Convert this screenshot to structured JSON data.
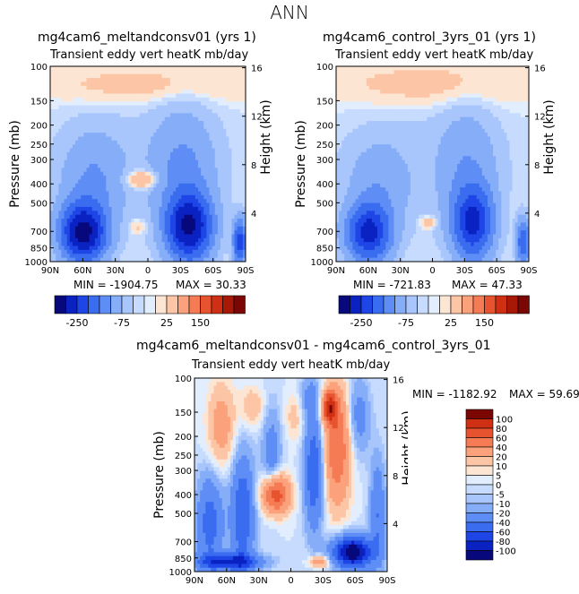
{
  "figure_title": "ANN",
  "palette": [
    "#08087d",
    "#0a22c2",
    "#1e46e6",
    "#3a6cf0",
    "#5e8ef5",
    "#86aef8",
    "#a8c6fb",
    "#c6dbfd",
    "#e2eefe",
    "#fde5d3",
    "#fcc6a6",
    "#fba27c",
    "#f57b55",
    "#e8532f",
    "#cf2f12",
    "#a71807",
    "#7a0704"
  ],
  "chart_data": [
    {
      "type": "contour",
      "title": "mg4cam6_meltandconsv01 (yrs 1)",
      "subtitle": "Transient eddy vert heatK mb/day",
      "ylabel": "Pressure (mb)",
      "ylabel_right": "Height (km)",
      "x_ticks": [
        "90N",
        "60N",
        "30N",
        "0",
        "30S",
        "60S",
        "90S"
      ],
      "y_ticks": [
        "100",
        "150",
        "200",
        "250",
        "300",
        "400",
        "500",
        "700",
        "850",
        "1000"
      ],
      "height_ticks": [
        "4",
        "8",
        "12",
        "16"
      ],
      "min_label": "MIN = -1904.75",
      "max_label": "MAX =   30.33",
      "colorbar_labels": [
        "-250",
        "-75",
        "25",
        "150"
      ]
    },
    {
      "type": "contour",
      "title": "mg4cam6_control_3yrs_01 (yrs 1)",
      "subtitle": "Transient eddy vert heatK mb/day",
      "ylabel": "Pressure (mb)",
      "ylabel_right": "Height (km)",
      "x_ticks": [
        "90N",
        "60N",
        "30N",
        "0",
        "30S",
        "60S",
        "90S"
      ],
      "y_ticks": [
        "100",
        "150",
        "200",
        "250",
        "300",
        "400",
        "500",
        "700",
        "850",
        "1000"
      ],
      "height_ticks": [
        "4",
        "8",
        "12",
        "16"
      ],
      "min_label": "MIN = -721.83",
      "max_label": "MAX =   47.33",
      "colorbar_labels": [
        "-250",
        "-75",
        "25",
        "150"
      ]
    },
    {
      "type": "contour",
      "title": "mg4cam6_meltandconsv01 - mg4cam6_control_3yrs_01",
      "subtitle": "Transient eddy vert heatK mb/day",
      "ylabel": "Pressure (mb)",
      "ylabel_right": "Height (km)",
      "x_ticks": [
        "90N",
        "60N",
        "30N",
        "0",
        "30S",
        "60S",
        "90S"
      ],
      "y_ticks": [
        "100",
        "150",
        "200",
        "250",
        "300",
        "400",
        "500",
        "700",
        "850",
        "1000"
      ],
      "height_ticks": [
        "4",
        "8",
        "12",
        "16"
      ],
      "min_label": "MIN = -1182.92",
      "max_label": "MAX =   59.69",
      "colorbar_labels": [
        "100",
        "80",
        "60",
        "40",
        "20",
        "10",
        "5",
        "0",
        "-5",
        "-10",
        "-20",
        "-40",
        "-60",
        "-80",
        "-100"
      ]
    }
  ]
}
